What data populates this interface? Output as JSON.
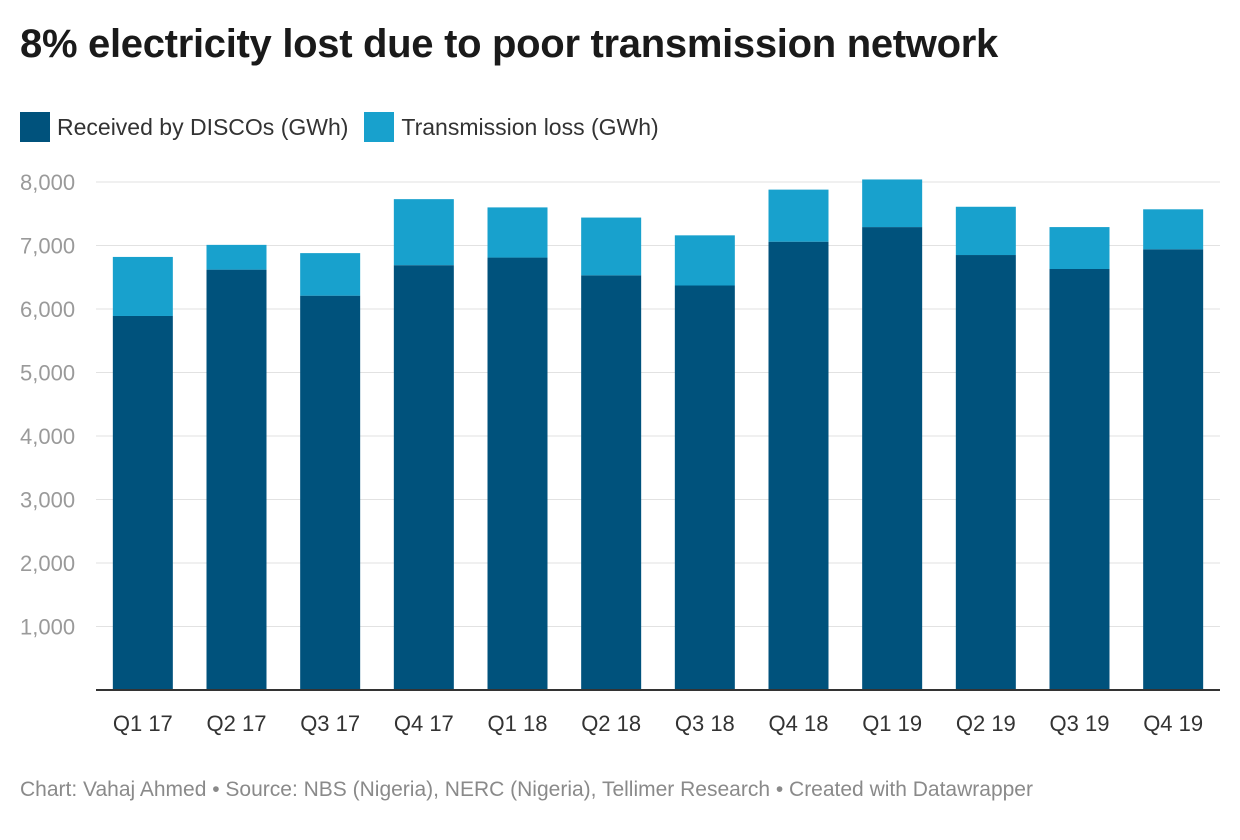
{
  "chart_data": {
    "type": "bar",
    "stacked": true,
    "title": "8% electricity lost due to poor transmission network",
    "categories": [
      "Q1 17",
      "Q2 17",
      "Q3 17",
      "Q4 17",
      "Q1 18",
      "Q2 18",
      "Q3 18",
      "Q4 18",
      "Q1 19",
      "Q2 19",
      "Q3 19",
      "Q4 19"
    ],
    "series": [
      {
        "name": "Received by DISCOs (GWh)",
        "color": "#00527c",
        "values": [
          5890,
          6620,
          6210,
          6690,
          6810,
          6530,
          6370,
          7060,
          7290,
          6850,
          6630,
          6940
        ]
      },
      {
        "name": "Transmission loss (GWh)",
        "color": "#18a1cd",
        "values": [
          930,
          390,
          670,
          1040,
          790,
          910,
          790,
          820,
          750,
          760,
          660,
          630
        ]
      }
    ],
    "yticks": [
      1000,
      2000,
      3000,
      4000,
      5000,
      6000,
      7000,
      8000
    ],
    "ytick_labels": [
      "1,000",
      "2,000",
      "3,000",
      "4,000",
      "5,000",
      "6,000",
      "7,000",
      "8,000"
    ],
    "ylim": [
      0,
      8000
    ],
    "grid": true,
    "legend_position": "top-left"
  },
  "footer": "Chart: Vahaj Ahmed • Source: NBS (Nigeria), NERC (Nigeria), Tellimer Research • Created with Datawrapper"
}
